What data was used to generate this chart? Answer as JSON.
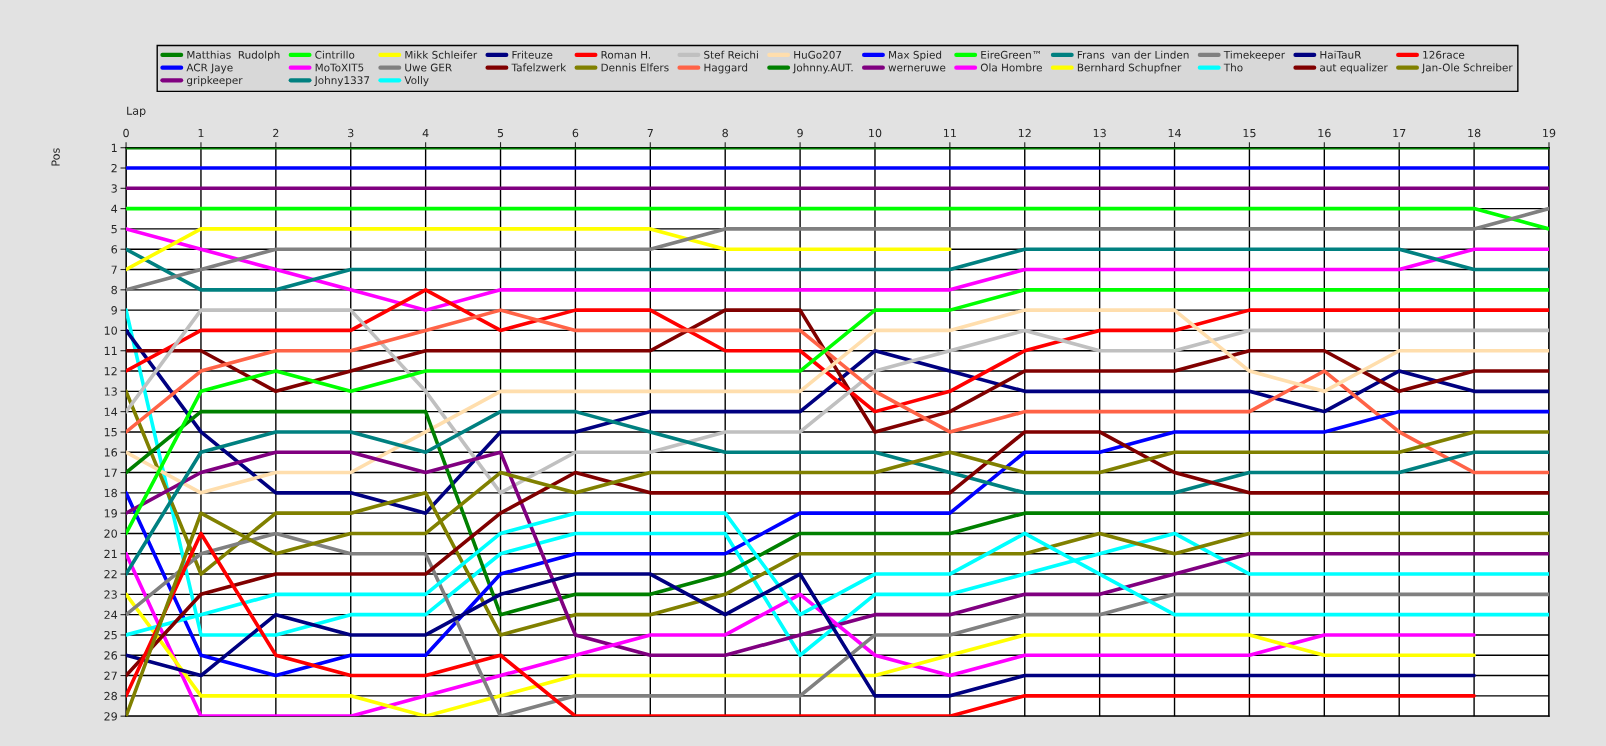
{
  "chart_data": {
    "type": "line",
    "xlabel": "Lap",
    "ylabel": "Pos",
    "x": [
      0,
      1,
      2,
      3,
      4,
      5,
      6,
      7,
      8,
      9,
      10,
      11,
      12,
      13,
      14,
      15,
      16,
      17,
      18,
      19
    ],
    "xlim": [
      0,
      19
    ],
    "ylim": [
      29,
      1
    ],
    "xticks": [
      0,
      1,
      2,
      3,
      4,
      5,
      6,
      7,
      8,
      9,
      10,
      11,
      12,
      13,
      14,
      15,
      16,
      17,
      18,
      19
    ],
    "yticks": [
      1,
      2,
      3,
      4,
      5,
      6,
      7,
      8,
      9,
      10,
      11,
      12,
      13,
      14,
      15,
      16,
      17,
      18,
      19,
      20,
      21,
      22,
      23,
      24,
      25,
      26,
      27,
      28,
      29
    ],
    "grid": true,
    "legend": "top",
    "series": [
      {
        "name": "Matthias  Rudolph",
        "color": "#008000",
        "values": [
          1,
          1,
          1,
          1,
          1,
          1,
          1,
          1,
          1,
          1,
          1,
          1,
          1,
          1,
          1,
          1,
          1,
          1,
          1,
          1
        ]
      },
      {
        "name": "ACR Jaye",
        "color": "#0000ff",
        "values": [
          2,
          2,
          2,
          2,
          2,
          2,
          2,
          2,
          2,
          2,
          2,
          2,
          2,
          2,
          2,
          2,
          2,
          2,
          2,
          2
        ]
      },
      {
        "name": "gripkeeper",
        "color": "#800080",
        "values": [
          3,
          3,
          3,
          3,
          3,
          3,
          3,
          3,
          3,
          3,
          3,
          3,
          3,
          3,
          3,
          3,
          3,
          3,
          3,
          3
        ]
      },
      {
        "name": "Cintrillo",
        "color": "#00ff00",
        "values": [
          4,
          4,
          4,
          4,
          4,
          4,
          4,
          4,
          4,
          4,
          4,
          4,
          4,
          4,
          4,
          4,
          4,
          4,
          4,
          5
        ]
      },
      {
        "name": "MoToXIT5",
        "color": "#ff00ff",
        "values": [
          5,
          6,
          7,
          8,
          9,
          8,
          8,
          8,
          8,
          8,
          8,
          8,
          7,
          7,
          7,
          7,
          7,
          7,
          6,
          6
        ]
      },
      {
        "name": "Johny1337",
        "color": "#008080",
        "values": [
          6,
          8,
          8,
          7,
          7,
          7,
          7,
          7,
          7,
          7,
          7,
          7,
          6,
          6,
          6,
          6,
          6,
          6,
          7,
          7
        ]
      },
      {
        "name": "Mikk Schleifer",
        "color": "#ffff00",
        "values": [
          7,
          5,
          5,
          5,
          5,
          5,
          5,
          5,
          6,
          6,
          6,
          6,
          null,
          null,
          null,
          null,
          null,
          null,
          null,
          null
        ]
      },
      {
        "name": "Uwe GER",
        "color": "#808080",
        "values": [
          8,
          7,
          6,
          6,
          6,
          6,
          6,
          6,
          5,
          5,
          5,
          5,
          5,
          5,
          5,
          5,
          5,
          5,
          5,
          4
        ]
      },
      {
        "name": "Volly",
        "color": "#00ffff",
        "values": [
          9,
          25,
          25,
          24,
          24,
          21,
          20,
          20,
          20,
          26,
          23,
          23,
          22,
          21,
          20,
          22,
          22,
          22,
          22,
          22
        ]
      },
      {
        "name": "Friteuze",
        "color": "#000080",
        "values": [
          10,
          15,
          18,
          18,
          19,
          15,
          15,
          14,
          14,
          14,
          11,
          12,
          13,
          13,
          13,
          13,
          14,
          12,
          13,
          13
        ]
      },
      {
        "name": "Tafelzwerk",
        "color": "#800000",
        "values": [
          11,
          11,
          13,
          12,
          11,
          11,
          11,
          11,
          9,
          9,
          15,
          14,
          12,
          12,
          12,
          11,
          11,
          13,
          12,
          12
        ]
      },
      {
        "name": "Roman H.",
        "color": "#ff0000",
        "values": [
          12,
          10,
          10,
          10,
          8,
          10,
          9,
          9,
          11,
          11,
          14,
          13,
          11,
          10,
          10,
          9,
          9,
          9,
          9,
          9
        ]
      },
      {
        "name": "Dennis Elfers",
        "color": "#808000",
        "values": [
          13,
          22,
          19,
          19,
          18,
          25,
          24,
          24,
          23,
          21,
          21,
          21,
          21,
          20,
          21,
          20,
          20,
          20,
          20,
          20
        ]
      },
      {
        "name": "Stef Reichi",
        "color": "#c0c0c0",
        "values": [
          14,
          9,
          9,
          9,
          13,
          18,
          16,
          16,
          15,
          15,
          12,
          11,
          10,
          11,
          11,
          10,
          10,
          10,
          10,
          10
        ]
      },
      {
        "name": "Haggard",
        "color": "#ff6347",
        "values": [
          15,
          12,
          11,
          11,
          10,
          9,
          10,
          10,
          10,
          10,
          13,
          15,
          14,
          14,
          14,
          14,
          12,
          15,
          17,
          17
        ]
      },
      {
        "name": "HuGo207",
        "color": "#ffdead",
        "values": [
          16,
          18,
          17,
          17,
          15,
          13,
          13,
          13,
          13,
          13,
          10,
          10,
          9,
          9,
          9,
          12,
          13,
          11,
          11,
          11
        ]
      },
      {
        "name": "Johnny.AUT.",
        "color": "#008000",
        "values": [
          17,
          14,
          14,
          14,
          14,
          24,
          23,
          23,
          22,
          20,
          20,
          20,
          19,
          19,
          19,
          19,
          19,
          19,
          19,
          19
        ]
      },
      {
        "name": "Max Spied",
        "color": "#0000ff",
        "values": [
          18,
          26,
          27,
          26,
          26,
          22,
          21,
          21,
          21,
          19,
          19,
          19,
          16,
          16,
          15,
          15,
          15,
          14,
          14,
          14
        ]
      },
      {
        "name": "werneruwe",
        "color": "#800080",
        "values": [
          19,
          17,
          16,
          16,
          17,
          16,
          25,
          26,
          26,
          25,
          24,
          24,
          23,
          23,
          22,
          21,
          21,
          21,
          21,
          21
        ]
      },
      {
        "name": "EireGreen™",
        "color": "#00ff00",
        "values": [
          20,
          13,
          12,
          13,
          12,
          12,
          12,
          12,
          12,
          12,
          9,
          9,
          8,
          8,
          8,
          8,
          8,
          8,
          8,
          8
        ]
      },
      {
        "name": "Ola Hombre",
        "color": "#ff00ff",
        "values": [
          21,
          29,
          29,
          29,
          28,
          27,
          26,
          25,
          25,
          23,
          26,
          27,
          26,
          26,
          26,
          26,
          25,
          25,
          25,
          null
        ]
      },
      {
        "name": "Frans  van der Linden",
        "color": "#008080",
        "values": [
          22,
          16,
          15,
          15,
          16,
          14,
          14,
          15,
          16,
          16,
          16,
          17,
          18,
          18,
          18,
          17,
          17,
          17,
          16,
          16
        ]
      },
      {
        "name": "Bernhard Schupfner",
        "color": "#ffff00",
        "values": [
          23,
          28,
          28,
          28,
          29,
          28,
          27,
          27,
          27,
          27,
          27,
          26,
          25,
          25,
          25,
          25,
          26,
          26,
          26,
          null
        ]
      },
      {
        "name": "Timekeeper",
        "color": "#808080",
        "values": [
          24,
          21,
          20,
          21,
          21,
          29,
          28,
          28,
          28,
          28,
          25,
          25,
          24,
          24,
          23,
          23,
          23,
          23,
          23,
          23
        ]
      },
      {
        "name": "Tho",
        "color": "#00ffff",
        "values": [
          25,
          24,
          23,
          23,
          23,
          20,
          19,
          19,
          19,
          24,
          22,
          22,
          20,
          22,
          24,
          24,
          24,
          24,
          24,
          24
        ]
      },
      {
        "name": "HaiTauR",
        "color": "#000080",
        "values": [
          26,
          27,
          24,
          25,
          25,
          23,
          22,
          22,
          24,
          22,
          28,
          28,
          27,
          27,
          27,
          27,
          27,
          27,
          27,
          null
        ]
      },
      {
        "name": "aut equalizer",
        "color": "#800000",
        "values": [
          27,
          23,
          22,
          22,
          22,
          19,
          17,
          18,
          18,
          18,
          18,
          18,
          15,
          15,
          17,
          18,
          18,
          18,
          18,
          18
        ]
      },
      {
        "name": "126race",
        "color": "#ff0000",
        "values": [
          28,
          20,
          26,
          27,
          27,
          26,
          29,
          29,
          29,
          29,
          29,
          29,
          28,
          28,
          28,
          28,
          28,
          28,
          28,
          null
        ]
      },
      {
        "name": "Jan-Ole Schreiber",
        "color": "#808000",
        "values": [
          29,
          19,
          21,
          20,
          20,
          17,
          18,
          17,
          17,
          17,
          17,
          16,
          17,
          17,
          16,
          16,
          16,
          16,
          15,
          15
        ]
      }
    ]
  }
}
